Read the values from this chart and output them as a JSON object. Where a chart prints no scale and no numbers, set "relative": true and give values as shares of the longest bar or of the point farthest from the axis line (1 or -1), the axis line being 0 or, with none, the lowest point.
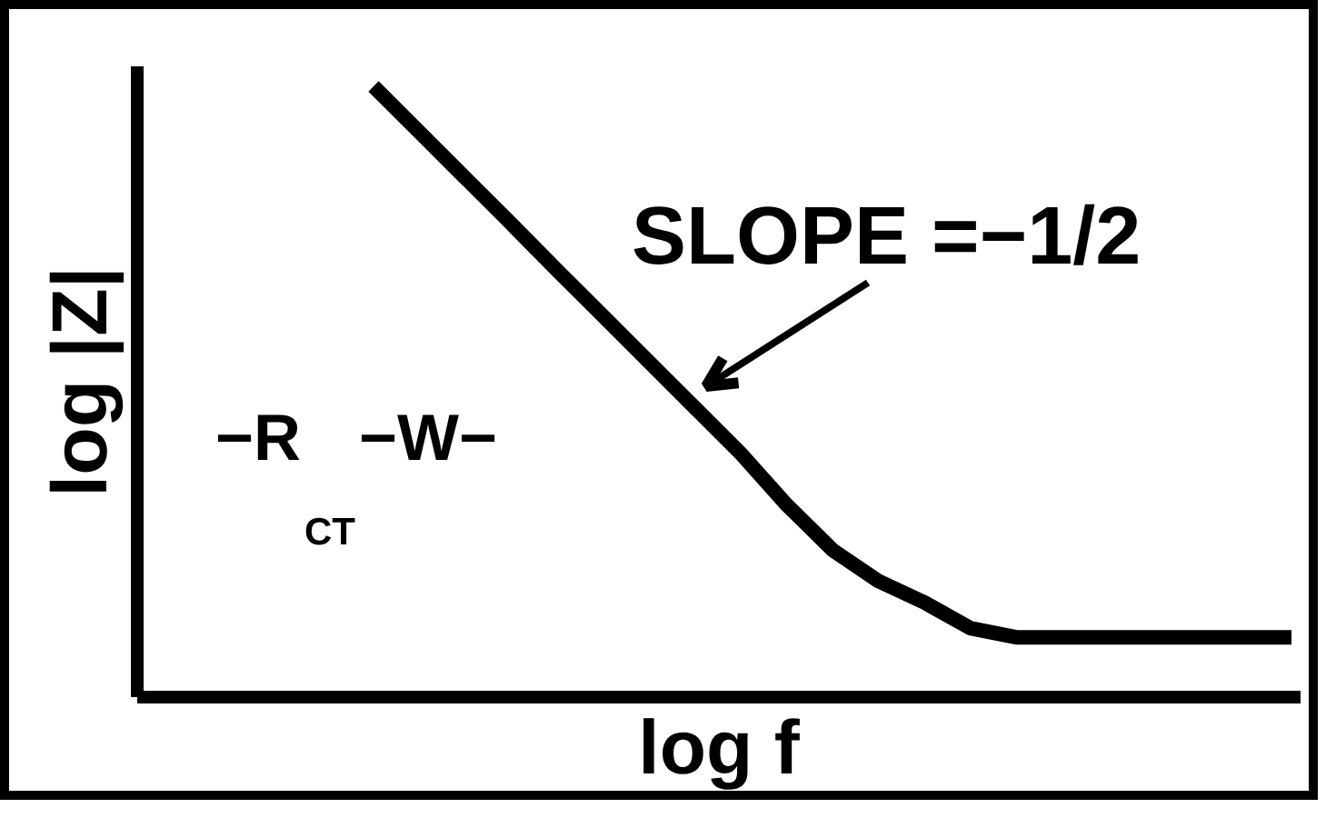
{
  "chart_data": {
    "type": "line",
    "xlabel": "log f",
    "ylabel": "log |Z|",
    "relative": true,
    "categories": [
      null,
      null,
      null,
      null,
      null,
      null,
      null,
      null,
      null,
      null,
      null,
      null,
      null,
      null,
      null,
      null,
      null,
      null,
      null,
      null,
      null
    ],
    "series": [
      {
        "color": "#000000",
        "values": [
          1,
          0.925,
          0.85,
          0.775,
          0.699,
          0.624,
          0.549,
          0.474,
          0.399,
          0.315,
          0.241,
          0.19,
          0.155,
          0.113,
          0.098,
          0.098,
          0.098,
          0.098,
          0.098,
          0.098,
          0.098
        ]
      }
    ],
    "annotations": [
      "SLOPE =−1/2",
      "−R$_{CT}$−W−"
    ]
  }
}
